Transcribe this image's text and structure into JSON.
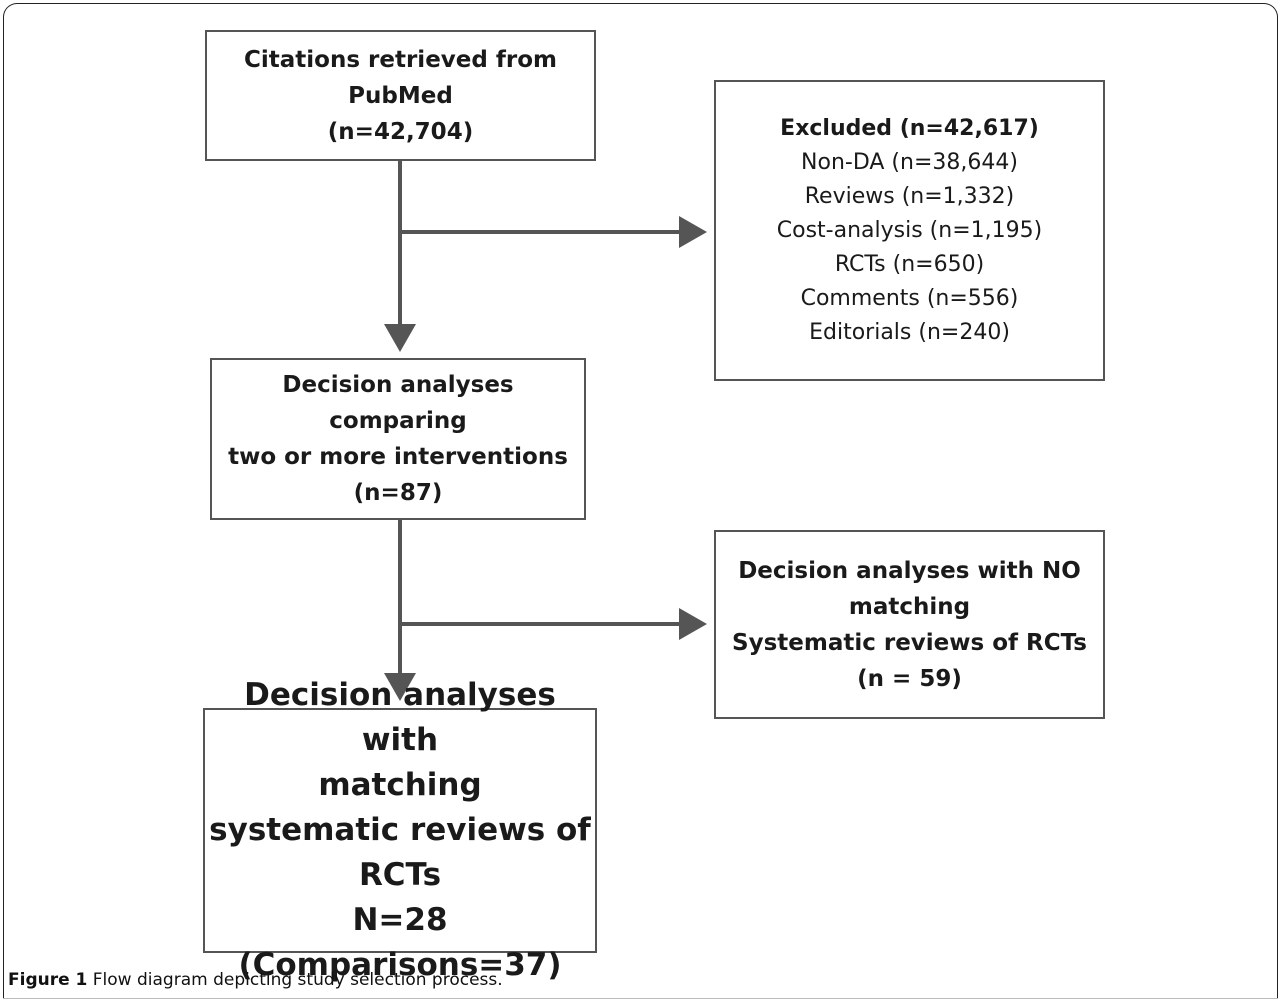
{
  "boxes": {
    "citations": {
      "lines": [
        "Citations retrieved from",
        "PubMed",
        "(n=42,704)"
      ]
    },
    "excluded": {
      "heading": "Excluded (n=42,617)",
      "items": [
        "Non-DA (n=38,644)",
        "Reviews (n=1,332)",
        "Cost-analysis (n=1,195)",
        "RCTs (n=650)",
        "Comments (n=556)",
        "Editorials (n=240)"
      ]
    },
    "decision_comparing": {
      "lines": [
        "Decision analyses comparing",
        "two or more interventions",
        "(n=87)"
      ]
    },
    "no_matching": {
      "lines": [
        "Decision analyses with NO",
        "matching",
        "Systematic reviews of RCTs",
        "(n = 59)"
      ]
    },
    "matching": {
      "lines": [
        "Decision analyses with",
        "matching",
        "systematic reviews of RCTs",
        "N=28",
        "(Comparisons=37)"
      ]
    }
  },
  "caption": {
    "label": "Figure 1",
    "text": " Flow diagram depicting study selection process."
  },
  "colors": {
    "line": "#555555",
    "border": "#555555",
    "frame": "#222222"
  }
}
